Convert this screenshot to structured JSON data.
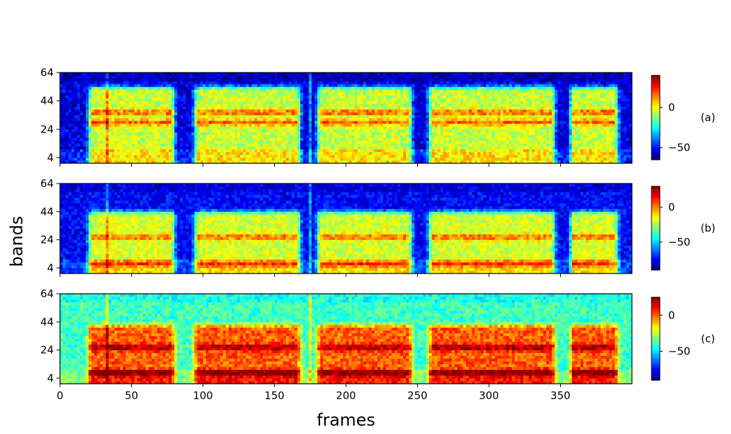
{
  "chart_data": {
    "type": "heatmap",
    "xlabel": "frames",
    "ylabel": "bands",
    "xlim": [
      0,
      400
    ],
    "ylim": [
      0,
      64
    ],
    "x_ticks": [
      0,
      50,
      100,
      150,
      200,
      250,
      300,
      350
    ],
    "x_tick_labels": [
      "0",
      "50",
      "100",
      "150",
      "200",
      "250",
      "300",
      "350"
    ],
    "y_ticks": [
      4,
      24,
      44,
      64
    ],
    "y_tick_labels": [
      "4",
      "24",
      "44",
      "64"
    ],
    "colormap": "jet",
    "bursts": [
      {
        "start": 18,
        "end": 82,
        "peak": 26
      },
      {
        "start": 92,
        "end": 170,
        "peak": 22
      },
      {
        "start": 178,
        "end": 248,
        "peak": 26
      },
      {
        "start": 256,
        "end": 348,
        "peak": 22
      },
      {
        "start": 355,
        "end": 392,
        "peak": 24
      }
    ],
    "spikes": [
      33,
      175
    ],
    "panels": [
      {
        "tag": "(a)",
        "colorbar_range": [
          -65,
          40
        ],
        "colorbar_ticks": [
          0,
          -50
        ],
        "colorbar_tick_labels": [
          "0",
          "−50"
        ],
        "background": -55,
        "burst_level": -5,
        "burst_top_band": 56,
        "hot_bands": [
          36,
          29
        ]
      },
      {
        "tag": "(b)",
        "colorbar_range": [
          -90,
          30
        ],
        "colorbar_ticks": [
          0,
          -50
        ],
        "colorbar_tick_labels": [
          "0",
          "−50"
        ],
        "background": -75,
        "burst_level": -20,
        "burst_top_band": 46,
        "hot_bands": [
          26,
          7
        ]
      },
      {
        "tag": "(c)",
        "colorbar_range": [
          -90,
          25
        ],
        "colorbar_ticks": [
          0,
          -50
        ],
        "colorbar_tick_labels": [
          "0",
          "−50"
        ],
        "background": -40,
        "burst_level": 0,
        "burst_top_band": 44,
        "hot_bands": [
          26,
          8
        ]
      }
    ]
  }
}
